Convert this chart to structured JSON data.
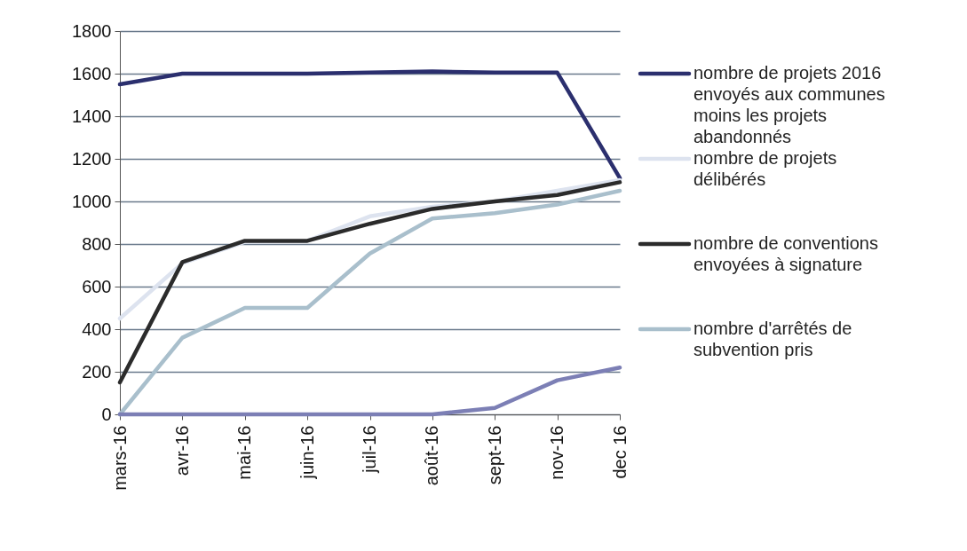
{
  "chart_data": {
    "type": "line",
    "categories": [
      "mars-16",
      "avr-16",
      "mai-16",
      "juin-16",
      "juil-16",
      "août-16",
      "sept-16",
      "nov-16",
      "dec 16"
    ],
    "series": [
      {
        "name": "nombre de projets 2016 envoyés aux communes moins les projets abandonnés",
        "color": "#2b2f6e",
        "values": [
          1550,
          1600,
          1600,
          1600,
          1605,
          1610,
          1605,
          1605,
          1110
        ]
      },
      {
        "name": "nombre de projets délibérés",
        "color": "#dde3ef",
        "values": [
          450,
          710,
          810,
          815,
          930,
          975,
          1000,
          1050,
          1100
        ]
      },
      {
        "name": "nombre de conventions envoyées à signature",
        "color": "#2b2b2b",
        "values": [
          150,
          715,
          815,
          815,
          895,
          965,
          1000,
          1030,
          1090
        ]
      },
      {
        "name": "nombre d'arrêtés de subvention pris",
        "color": "#a9bfcc",
        "values": [
          0,
          360,
          500,
          500,
          755,
          920,
          945,
          985,
          1050
        ]
      },
      {
        "color": "#7c7fb5",
        "values": [
          0,
          0,
          0,
          0,
          0,
          0,
          30,
          160,
          220
        ]
      }
    ],
    "ylim": [
      0,
      1800
    ],
    "yticks": [
      0,
      200,
      400,
      600,
      800,
      1000,
      1200,
      1400,
      1600,
      1800
    ],
    "grid": "y",
    "legend": "right"
  }
}
